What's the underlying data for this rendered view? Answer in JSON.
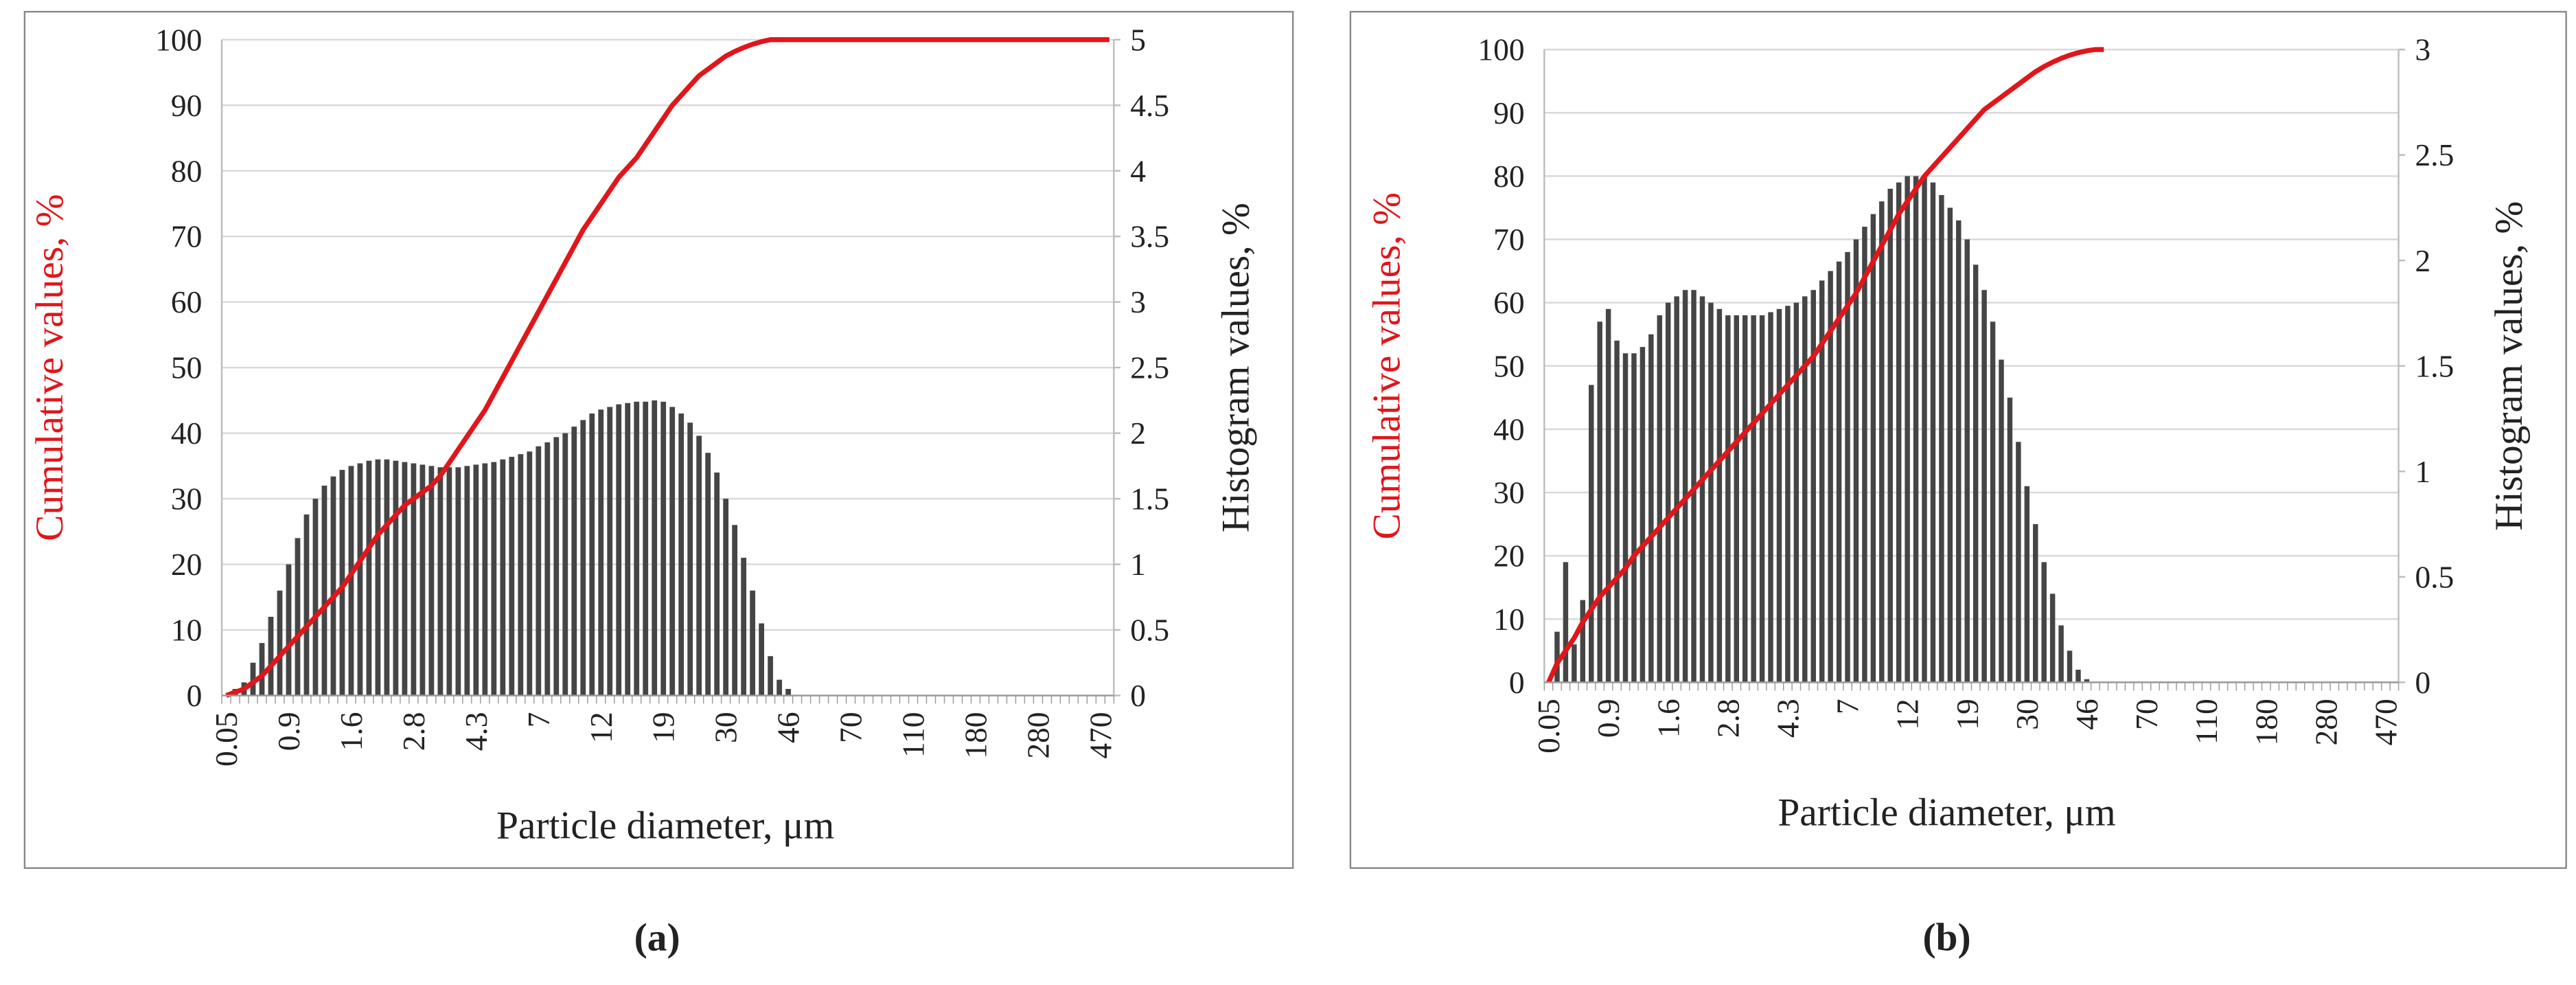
{
  "chart_data": [
    {
      "type": "bar",
      "caption": "(a)",
      "xlabel": "Particle diameter, μm",
      "ylabel": "Cumulative values, %",
      "y2label": "Histogram values, %",
      "grid": true,
      "categories": [
        "0.05",
        null,
        null,
        null,
        null,
        null,
        null,
        "0.9",
        null,
        null,
        null,
        null,
        null,
        null,
        "1.6",
        null,
        null,
        null,
        null,
        null,
        null,
        "2.8",
        null,
        null,
        null,
        null,
        null,
        null,
        "4.3",
        null,
        null,
        null,
        null,
        null,
        null,
        "7",
        null,
        null,
        null,
        null,
        null,
        null,
        "12",
        null,
        null,
        null,
        null,
        null,
        null,
        "19",
        null,
        null,
        null,
        null,
        null,
        null,
        "30",
        null,
        null,
        null,
        null,
        null,
        null,
        "46",
        null,
        null,
        null,
        null,
        null,
        null,
        "70",
        null,
        null,
        null,
        null,
        null,
        null,
        "110",
        null,
        null,
        null,
        null,
        null,
        null,
        "180",
        null,
        null,
        null,
        null,
        null,
        null,
        "280",
        null,
        null,
        null,
        null,
        null,
        null,
        "470",
        null
      ],
      "ylim": [
        0,
        100
      ],
      "yticks": [
        0,
        10,
        20,
        30,
        40,
        50,
        60,
        70,
        80,
        90,
        100
      ],
      "y2lim": [
        0,
        5
      ],
      "y2ticks": [
        0,
        0.5,
        1,
        1.5,
        2,
        2.5,
        3,
        3.5,
        4,
        4.5,
        5
      ],
      "series": [
        {
          "type": "bar",
          "axis": "y2",
          "color": "#454545",
          "values": [
            0,
            0.05,
            0.1,
            0.25,
            0.4,
            0.6,
            0.8,
            1,
            1.2,
            1.38,
            1.5,
            1.6,
            1.67,
            1.72,
            1.75,
            1.77,
            1.79,
            1.8,
            1.8,
            1.79,
            1.78,
            1.77,
            1.76,
            1.75,
            1.74,
            1.74,
            1.74,
            1.75,
            1.76,
            1.77,
            1.78,
            1.8,
            1.82,
            1.84,
            1.86,
            1.9,
            1.93,
            1.97,
            2,
            2.05,
            2.1,
            2.15,
            2.18,
            2.2,
            2.22,
            2.23,
            2.24,
            2.24,
            2.25,
            2.24,
            2.2,
            2.15,
            2.08,
            1.98,
            1.85,
            1.7,
            1.5,
            1.3,
            1.05,
            0.8,
            0.55,
            0.3,
            0.12,
            0.05,
            0,
            0,
            0,
            0,
            0,
            0,
            0,
            0,
            0,
            0,
            0,
            0,
            0,
            0,
            0,
            0,
            0,
            0,
            0,
            0,
            0,
            0,
            0,
            0,
            0,
            0,
            0,
            0,
            0,
            0,
            0,
            0,
            0,
            0,
            0,
            0
          ]
        },
        {
          "type": "line",
          "color": "#e0161b",
          "values": [
            0,
            0.5,
            1,
            2,
            3,
            4.5,
            6,
            7.5,
            9,
            10.5,
            12,
            13.5,
            15,
            16.5,
            18.5,
            20.5,
            22.5,
            24.5,
            26,
            27.5,
            29,
            30,
            31,
            32,
            33.5,
            35.5,
            37.5,
            39.5,
            41.5,
            43.5,
            46,
            48.5,
            51,
            53.5,
            56,
            58.5,
            61,
            63.5,
            66,
            68.5,
            71,
            73,
            75,
            77,
            79,
            80.5,
            82,
            84,
            86,
            88,
            90,
            91.5,
            93,
            94.5,
            95.5,
            96.5,
            97.5,
            98.2,
            98.8,
            99.3,
            99.7,
            100,
            100,
            100,
            100,
            100,
            100,
            100,
            100,
            100,
            100,
            100,
            100,
            100,
            100,
            100,
            100,
            100,
            100,
            100,
            100,
            100,
            100,
            100,
            100,
            100,
            100,
            100,
            100,
            100,
            100,
            100,
            100,
            100,
            100,
            100,
            100,
            100,
            100,
            100
          ]
        }
      ]
    },
    {
      "type": "bar",
      "caption": "(b)",
      "xlabel": "Particle diameter, μm",
      "ylabel": "Cumulative values, %",
      "y2label": "Histogram values, %",
      "grid": true,
      "categories": [
        "0.05",
        null,
        null,
        null,
        null,
        null,
        null,
        "0.9",
        null,
        null,
        null,
        null,
        null,
        null,
        "1.6",
        null,
        null,
        null,
        null,
        null,
        null,
        "2.8",
        null,
        null,
        null,
        null,
        null,
        null,
        "4.3",
        null,
        null,
        null,
        null,
        null,
        null,
        "7",
        null,
        null,
        null,
        null,
        null,
        null,
        "12",
        null,
        null,
        null,
        null,
        null,
        null,
        "19",
        null,
        null,
        null,
        null,
        null,
        null,
        "30",
        null,
        null,
        null,
        null,
        null,
        null,
        "46",
        null,
        null,
        null,
        null,
        null,
        null,
        "70",
        null,
        null,
        null,
        null,
        null,
        null,
        "110",
        null,
        null,
        null,
        null,
        null,
        null,
        "180",
        null,
        null,
        null,
        null,
        null,
        null,
        "280",
        null,
        null,
        null,
        null,
        null,
        null,
        "470",
        null
      ],
      "ylim": [
        0,
        100
      ],
      "yticks": [
        0,
        10,
        20,
        30,
        40,
        50,
        60,
        70,
        80,
        90,
        100
      ],
      "y2lim": [
        0,
        3
      ],
      "y2ticks": [
        0,
        0.5,
        1,
        1.5,
        2,
        2.5,
        3
      ],
      "series": [
        {
          "type": "bar",
          "axis": "y2",
          "color": "#454545",
          "values": [
            0,
            0.24,
            0.57,
            0.18,
            0.39,
            1.41,
            1.71,
            1.77,
            1.62,
            1.56,
            1.56,
            1.59,
            1.65,
            1.74,
            1.8,
            1.83,
            1.86,
            1.86,
            1.83,
            1.8,
            1.77,
            1.74,
            1.74,
            1.74,
            1.74,
            1.74,
            1.755,
            1.77,
            1.785,
            1.8,
            1.83,
            1.86,
            1.905,
            1.95,
            1.995,
            2.04,
            2.1,
            2.16,
            2.22,
            2.28,
            2.34,
            2.37,
            2.4,
            2.4,
            2.4,
            2.37,
            2.31,
            2.25,
            2.19,
            2.1,
            1.98,
            1.86,
            1.71,
            1.53,
            1.35,
            1.14,
            0.93,
            0.75,
            0.57,
            0.42,
            0.27,
            0.15,
            0.06,
            0.015,
            0,
            0,
            0,
            0,
            0,
            0,
            0,
            0,
            0,
            0,
            0,
            0,
            0,
            0,
            0,
            0,
            0,
            0,
            0,
            0,
            0,
            0,
            0,
            0,
            0,
            0,
            0,
            0,
            0,
            0,
            0,
            0,
            0,
            0,
            0,
            0
          ]
        },
        {
          "type": "line",
          "color": "#e0161b",
          "values": [
            0,
            3,
            5,
            7,
            9.5,
            11.5,
            13.5,
            15,
            16.5,
            18,
            20,
            21.5,
            23,
            24.5,
            26,
            27.5,
            29,
            30.5,
            32,
            33.5,
            35,
            36.5,
            38,
            39.5,
            41,
            42.5,
            44,
            45.5,
            47,
            48.5,
            50,
            51.5,
            53.5,
            55.5,
            57.5,
            59.5,
            61.5,
            64,
            66.5,
            69,
            71.5,
            74,
            76,
            78,
            80,
            81.5,
            83,
            84.5,
            86,
            87.5,
            89,
            90.5,
            91.5,
            92.5,
            93.5,
            94.5,
            95.5,
            96.5,
            97.3,
            98,
            98.6,
            99.1,
            99.5,
            99.8,
            100,
            100,
            null,
            null,
            null,
            null,
            null,
            null,
            null,
            null,
            null,
            null,
            null,
            null,
            null,
            null,
            null,
            null,
            null,
            null,
            null,
            null,
            null,
            null,
            null,
            null,
            null,
            null,
            null,
            null,
            null,
            null,
            null,
            null,
            null,
            null
          ]
        }
      ]
    }
  ]
}
